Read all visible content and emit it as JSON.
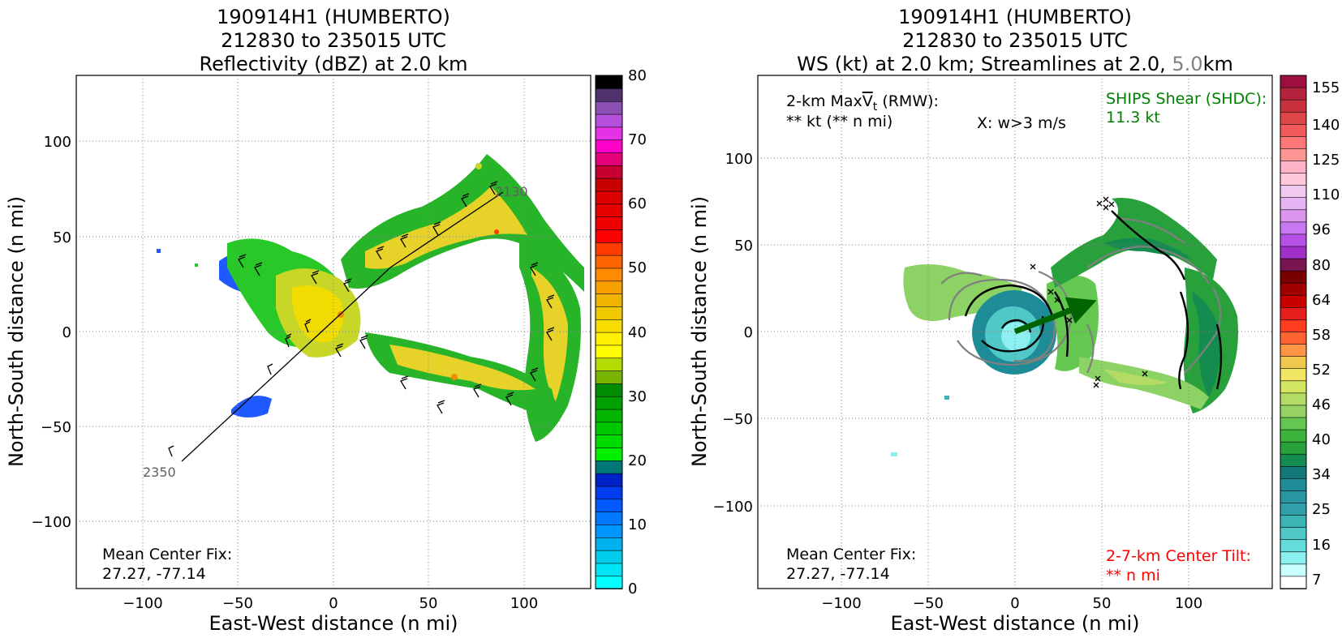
{
  "panels": [
    {
      "title_lines": [
        "190914H1 (HUMBERTO)",
        "212830 to 235015 UTC",
        "Reflectivity (dBZ) at 2.0 km"
      ],
      "xlabel": "East-West distance (n mi)",
      "ylabel": "North-South distance (n mi)",
      "x_ticks": [
        "−100",
        "−50",
        "0",
        "50",
        "100"
      ],
      "y_ticks": [
        "100",
        "50",
        "0",
        "−50",
        "−100"
      ],
      "annotations": {
        "center_fix_label": "Mean Center Fix:",
        "center_fix_value": "27.27, -77.14",
        "track_start_label": "2350",
        "track_end_label": "2130"
      },
      "colorbar": {
        "ticks": [
          "0",
          "10",
          "20",
          "30",
          "40",
          "50",
          "60",
          "70",
          "80"
        ]
      }
    },
    {
      "title_lines": [
        "190914H1 (HUMBERTO)",
        "212830 to 235015 UTC"
      ],
      "title_line3_a": "WS (kt) at 2.0 km; Streamlines at 2.0,",
      "title_line3_b": "5.0",
      "title_line3_c": "km",
      "xlabel": "East-West distance (n mi)",
      "ylabel": "North-South distance (n mi)",
      "x_ticks": [
        "−100",
        "−50",
        "0",
        "50",
        "100"
      ],
      "y_ticks": [
        "100",
        "50",
        "0",
        "−50",
        "−100"
      ],
      "annotations": {
        "maxvt_label_a": "2-km Max",
        "maxvt_label_v": "V",
        "maxvt_label_t": "t",
        "maxvt_label_b": " (RMW):",
        "maxvt_value": "** kt (** n mi)",
        "w_note": "X: w>3 m/s",
        "shear_label": "SHIPS Shear (SHDC):",
        "shear_value": "11.3 kt",
        "center_fix_label": "Mean Center Fix:",
        "center_fix_value": "27.27, -77.14",
        "tilt_label": "2-7-km Center Tilt:",
        "tilt_value": "** n mi"
      },
      "colorbar": {
        "ticks": [
          "155",
          "140",
          "125",
          "110",
          "96",
          "80",
          "64",
          "58",
          "52",
          "46",
          "40",
          "34",
          "25",
          "16",
          "7"
        ]
      }
    }
  ],
  "chart_data": [
    {
      "type": "heatmap",
      "title": "190914H1 (HUMBERTO) 212830 to 235015 UTC Reflectivity (dBZ) at 2.0 km",
      "xlabel": "East-West distance (n mi)",
      "ylabel": "North-South distance (n mi)",
      "xlim": [
        -135,
        135
      ],
      "ylim": [
        -135,
        135
      ],
      "x_ticks": [
        -100,
        -50,
        0,
        50,
        100
      ],
      "y_ticks": [
        -100,
        -50,
        0,
        50,
        100
      ],
      "grid": true,
      "colorbar": {
        "variable": "Reflectivity (dBZ)",
        "range": [
          0,
          80
        ],
        "step": 2.5,
        "ticks": [
          0,
          10,
          20,
          30,
          40,
          50,
          60,
          70,
          80
        ],
        "colors": [
          "#00ffff",
          "#00e5f5",
          "#00cbeb",
          "#00b1f0",
          "#0096ff",
          "#0078ff",
          "#005aff",
          "#003cf0",
          "#0020c8",
          "#007878",
          "#00f000",
          "#00dc00",
          "#00c800",
          "#00b400",
          "#00a000",
          "#008c00",
          "#78b400",
          "#b4dc00",
          "#ffff00",
          "#fff000",
          "#f8dc00",
          "#f0c800",
          "#f0b400",
          "#f8a000",
          "#ff8c00",
          "#ff6400",
          "#ff3c00",
          "#ff0000",
          "#f00000",
          "#e60000",
          "#dc0000",
          "#c80000",
          "#c80032",
          "#e6007a",
          "#ff00c8",
          "#e632e6",
          "#b450dc",
          "#8c50b4",
          "#50326e",
          "#000000"
        ]
      },
      "flight_track": {
        "points": [
          [
            -80,
            -68
          ],
          [
            10,
            15
          ],
          [
            30,
            35
          ],
          [
            90,
            72
          ]
        ],
        "start_label": "2350",
        "end_label": "2130"
      },
      "center_fix": [
        27.27,
        -77.14
      ]
    },
    {
      "type": "heatmap",
      "title": "190914H1 (HUMBERTO) 212830 to 235015 UTC WS (kt) at 2.0 km; Streamlines at 2.0, 5.0 km",
      "xlabel": "East-West distance (n mi)",
      "ylabel": "North-South distance (n mi)",
      "xlim": [
        -148,
        148
      ],
      "ylim": [
        -148,
        148
      ],
      "x_ticks": [
        -100,
        -50,
        0,
        50,
        100
      ],
      "y_ticks": [
        -100,
        -50,
        0,
        50,
        100
      ],
      "grid": true,
      "colorbar": {
        "variable": "WS (kt)",
        "ticks": [
          155,
          140,
          125,
          110,
          96,
          80,
          64,
          58,
          52,
          46,
          40,
          34,
          25,
          16,
          7
        ],
        "colors": [
          "#9c0f3e",
          "#b4233e",
          "#c8323e",
          "#dc4646",
          "#f05a5a",
          "#ff7878",
          "#ff9696",
          "#ffb4c8",
          "#ffc8dc",
          "#f0c8f0",
          "#e6b4f0",
          "#dc96f0",
          "#c878f0",
          "#b450e6",
          "#a030c8",
          "#7a1450",
          "#780000",
          "#a00000",
          "#c80000",
          "#e61e1e",
          "#ff3c1e",
          "#ff6432",
          "#ff9646",
          "#f0c850",
          "#f0e664",
          "#d2e664",
          "#b4dc64",
          "#96d264",
          "#64c850",
          "#3cb43c",
          "#28a03c",
          "#148c50",
          "#147878",
          "#1e8c96",
          "#2896a0",
          "#32a0aa",
          "#3cb4b4",
          "#50c8c8",
          "#64dcdc",
          "#8cf0f0",
          "#c8ffff",
          "#ffffff"
        ]
      },
      "shear_vector": {
        "from": [
          0,
          0
        ],
        "to": [
          46,
          17
        ],
        "color": "#006400"
      },
      "ships_shear_kt": 11.3,
      "streamline_levels_km": [
        2.0,
        5.0
      ],
      "center_fix": [
        27.27,
        -77.14
      ]
    }
  ]
}
